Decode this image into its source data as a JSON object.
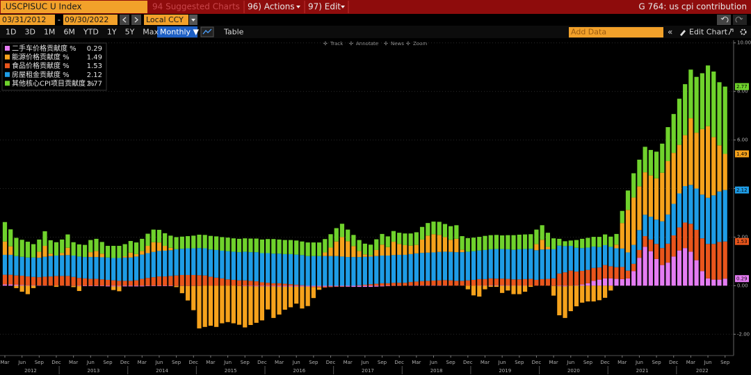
{
  "ui": {
    "ticker": ".USCPISUC U Index",
    "suggested": "94 Suggested Charts",
    "actions": "96) Actions",
    "edit": "97) Edit",
    "chart_id": "G 764: us cpi contribution",
    "start_date": "03/31/2012",
    "dash": "-",
    "end_date": "09/30/2022",
    "currency": "Local CCY",
    "periods": [
      "1D",
      "3D",
      "1M",
      "6M",
      "YTD",
      "1Y",
      "5Y",
      "Max"
    ],
    "frequency": "Monthly ▼",
    "table": "Table",
    "add_data": "Add Data",
    "edit_chart": "Edit Chart",
    "tools": [
      "Track",
      "Annotate",
      "News",
      "Zoom"
    ]
  },
  "chart_data": {
    "type": "bar",
    "stacked": true,
    "grid": true,
    "legend": "top-left",
    "categories": [
      "Mar",
      null,
      null,
      "Jun",
      null,
      null,
      "Sep",
      null,
      null,
      "Dec",
      null,
      null,
      "Mar",
      null,
      null,
      "Jun",
      null,
      null,
      "Sep",
      null,
      null,
      "Dec",
      null,
      null,
      "Mar",
      null,
      null,
      "Jun",
      null,
      null,
      "Sep",
      null,
      null,
      "Dec",
      null,
      null,
      "Mar",
      null,
      null,
      "Jun",
      null,
      null,
      "Sep",
      null,
      null,
      "Dec",
      null,
      null,
      "Mar",
      null,
      null,
      "Jun",
      null,
      null,
      "Sep",
      null,
      null,
      "Dec",
      null,
      null,
      "Mar",
      null,
      null,
      "Jun",
      null,
      null,
      "Sep",
      null,
      null,
      "Dec",
      null,
      null,
      "Mar",
      null,
      null,
      "Jun",
      null,
      null,
      "Sep",
      null,
      null,
      "Dec",
      null,
      null,
      "Mar",
      null,
      null,
      "Jun",
      null,
      null,
      "Sep",
      null,
      null,
      "Dec",
      null,
      null,
      "Mar",
      null,
      null,
      "Jun",
      null,
      null,
      "Sep",
      null,
      null,
      "Dec",
      null,
      null,
      "Mar",
      null,
      null,
      "Jun",
      null,
      null,
      "Sep",
      null,
      null,
      "Dec",
      null,
      null,
      "Mar",
      null,
      null,
      "Jun",
      null,
      null,
      "Sep"
    ],
    "years": [
      "2012",
      "2013",
      "2014",
      "2015",
      "2016",
      "2017",
      "2018",
      "2019",
      "2020",
      "2021",
      "2022"
    ],
    "ylim": [
      -2.85,
      10.05
    ],
    "yticks": [
      {
        "value": -2,
        "label": "-2.00"
      },
      {
        "value": 0,
        "label": "0.00"
      },
      {
        "value": 2,
        "label": "2.00"
      },
      {
        "value": 4,
        "label": "4.00"
      },
      {
        "value": 6,
        "label": "6.00"
      },
      {
        "value": 8,
        "label": "8.00"
      },
      {
        "value": 10,
        "label": "10.00"
      }
    ],
    "series": [
      {
        "name": "二手车价格贡献度 %",
        "color": "#e47cf2",
        "values": [
          0.05,
          0.05,
          0.04,
          0.03,
          0.02,
          0.02,
          0.01,
          0.01,
          0.0,
          0.0,
          0.0,
          -0.01,
          -0.01,
          -0.02,
          -0.02,
          -0.02,
          -0.02,
          -0.02,
          -0.03,
          -0.03,
          -0.03,
          -0.03,
          -0.03,
          -0.03,
          -0.03,
          -0.02,
          -0.02,
          -0.02,
          -0.02,
          -0.02,
          -0.01,
          -0.01,
          -0.01,
          -0.01,
          -0.01,
          0.0,
          0.0,
          0.0,
          0.0,
          0.0,
          0.0,
          -0.01,
          -0.02,
          -0.02,
          -0.03,
          -0.03,
          -0.03,
          -0.03,
          -0.04,
          -0.04,
          -0.04,
          -0.04,
          -0.04,
          -0.04,
          -0.04,
          -0.04,
          -0.04,
          -0.03,
          -0.03,
          -0.03,
          -0.04,
          -0.05,
          -0.05,
          -0.05,
          -0.05,
          -0.04,
          -0.03,
          -0.02,
          -0.01,
          -0.01,
          0.0,
          0.01,
          0.01,
          0.01,
          0.01,
          0.01,
          0.01,
          0.01,
          0.0,
          0.0,
          0.0,
          0.0,
          0.0,
          0.01,
          0.01,
          0.02,
          0.02,
          0.02,
          0.02,
          0.01,
          0.01,
          0.01,
          0.0,
          0.0,
          0.0,
          0.0,
          -0.01,
          -0.02,
          -0.03,
          0.0,
          0.02,
          0.05,
          0.1,
          0.2,
          0.25,
          0.3,
          0.3,
          0.28,
          0.27,
          0.3,
          0.6,
          1.15,
          1.6,
          1.42,
          1.1,
          0.85,
          0.95,
          1.2,
          1.45,
          1.55,
          1.4,
          1.05,
          0.6,
          0.3,
          0.25,
          0.25,
          0.29
        ]
      },
      {
        "name": "能源价格贡献度 %",
        "color": "#f5a21c",
        "values": [
          0.55,
          0.35,
          -0.1,
          -0.25,
          -0.35,
          -0.1,
          0.25,
          0.45,
          0.1,
          -0.05,
          0.1,
          0.3,
          -0.05,
          -0.2,
          0.0,
          0.2,
          0.25,
          0.15,
          0.0,
          -0.15,
          -0.2,
          0.05,
          0.2,
          0.1,
          0.15,
          0.3,
          0.4,
          0.35,
          0.2,
          0.1,
          -0.05,
          -0.3,
          -0.6,
          -1.0,
          -1.75,
          -1.7,
          -1.65,
          -1.7,
          -1.55,
          -1.5,
          -1.55,
          -1.6,
          -1.7,
          -1.6,
          -1.5,
          -1.4,
          -0.95,
          -1.3,
          -1.15,
          -0.95,
          -0.85,
          -0.7,
          -0.9,
          -0.8,
          -0.45,
          -0.1,
          0.15,
          0.35,
          0.6,
          0.8,
          0.65,
          0.45,
          0.25,
          0.1,
          0.05,
          0.25,
          0.45,
          0.35,
          0.55,
          0.45,
          0.4,
          0.35,
          0.35,
          0.55,
          0.7,
          0.75,
          0.7,
          0.6,
          0.5,
          0.55,
          0.1,
          -0.15,
          -0.4,
          -0.45,
          -0.15,
          -0.05,
          -0.05,
          -0.3,
          -0.2,
          -0.35,
          -0.35,
          -0.25,
          -0.05,
          0.25,
          0.4,
          0.1,
          -0.4,
          -1.2,
          -1.3,
          -1.05,
          -0.85,
          -0.7,
          -0.65,
          -0.65,
          -0.6,
          -0.5,
          -0.2,
          0.15,
          1.05,
          1.75,
          1.95,
          1.8,
          1.75,
          1.7,
          1.7,
          2.0,
          2.2,
          2.1,
          2.0,
          2.1,
          2.75,
          2.3,
          2.7,
          2.95,
          2.4,
          1.9,
          1.49
        ]
      },
      {
        "name": "食品价格贡献度 %",
        "color": "#e8551c",
        "values": [
          0.4,
          0.4,
          0.38,
          0.38,
          0.36,
          0.34,
          0.34,
          0.36,
          0.38,
          0.4,
          0.4,
          0.4,
          0.36,
          0.32,
          0.3,
          0.28,
          0.28,
          0.26,
          0.24,
          0.22,
          0.2,
          0.2,
          0.2,
          0.22,
          0.28,
          0.32,
          0.35,
          0.38,
          0.38,
          0.4,
          0.42,
          0.44,
          0.44,
          0.44,
          0.43,
          0.42,
          0.37,
          0.33,
          0.3,
          0.26,
          0.24,
          0.22,
          0.22,
          0.2,
          0.18,
          0.14,
          0.12,
          0.1,
          0.1,
          0.08,
          0.06,
          0.04,
          0.02,
          0.0,
          -0.02,
          -0.03,
          -0.04,
          -0.03,
          -0.02,
          -0.02,
          -0.01,
          0.0,
          0.02,
          0.04,
          0.06,
          0.08,
          0.1,
          0.1,
          0.12,
          0.12,
          0.12,
          0.14,
          0.16,
          0.18,
          0.19,
          0.2,
          0.21,
          0.22,
          0.22,
          0.2,
          0.2,
          0.22,
          0.24,
          0.26,
          0.26,
          0.28,
          0.27,
          0.27,
          0.26,
          0.25,
          0.25,
          0.26,
          0.28,
          0.24,
          0.27,
          0.28,
          0.3,
          0.5,
          0.55,
          0.62,
          0.56,
          0.56,
          0.55,
          0.53,
          0.5,
          0.55,
          0.5,
          0.48,
          0.5,
          0.32,
          0.3,
          0.32,
          0.44,
          0.48,
          0.62,
          0.7,
          0.78,
          0.87,
          0.95,
          1.05,
          1.15,
          1.25,
          1.35,
          1.42,
          1.47,
          1.55,
          1.53
        ]
      },
      {
        "name": "房屋租金贡献度 %",
        "color": "#1e9ce6",
        "values": [
          0.82,
          0.82,
          0.8,
          0.78,
          0.78,
          0.8,
          0.8,
          0.82,
          0.84,
          0.84,
          0.85,
          0.86,
          0.88,
          0.88,
          0.88,
          0.9,
          0.9,
          0.91,
          0.92,
          0.92,
          0.94,
          0.96,
          0.96,
          0.98,
          1.0,
          1.02,
          1.04,
          1.05,
          1.06,
          1.06,
          1.08,
          1.08,
          1.1,
          1.1,
          1.12,
          1.12,
          1.12,
          1.14,
          1.14,
          1.16,
          1.16,
          1.16,
          1.18,
          1.18,
          1.2,
          1.2,
          1.22,
          1.22,
          1.22,
          1.22,
          1.24,
          1.24,
          1.24,
          1.22,
          1.22,
          1.22,
          1.22,
          1.22,
          1.22,
          1.2,
          1.18,
          1.18,
          1.16,
          1.15,
          1.14,
          1.14,
          1.14,
          1.14,
          1.14,
          1.15,
          1.15,
          1.15,
          1.16,
          1.16,
          1.16,
          1.16,
          1.17,
          1.17,
          1.17,
          1.18,
          1.18,
          1.18,
          1.18,
          1.18,
          1.2,
          1.2,
          1.22,
          1.22,
          1.22,
          1.22,
          1.24,
          1.24,
          1.24,
          1.22,
          1.22,
          1.22,
          1.2,
          1.15,
          1.08,
          1.02,
          0.98,
          0.94,
          0.92,
          0.88,
          0.84,
          0.82,
          0.8,
          0.78,
          0.76,
          0.75,
          0.78,
          0.82,
          0.88,
          0.94,
          1.0,
          1.1,
          1.2,
          1.3,
          1.4,
          1.5,
          1.6,
          1.7,
          1.8,
          1.9,
          2.0,
          2.08,
          2.12
        ]
      },
      {
        "name": "其他核心CPI项目贡献度 %",
        "color": "#6fd22c",
        "values": [
          0.8,
          0.7,
          0.75,
          0.7,
          0.65,
          0.55,
          0.5,
          0.6,
          0.55,
          0.55,
          0.55,
          0.55,
          0.55,
          0.5,
          0.5,
          0.5,
          0.5,
          0.48,
          0.48,
          0.5,
          0.5,
          0.5,
          0.48,
          0.48,
          0.5,
          0.5,
          0.52,
          0.52,
          0.52,
          0.5,
          0.5,
          0.5,
          0.5,
          0.52,
          0.55,
          0.55,
          0.56,
          0.56,
          0.56,
          0.56,
          0.55,
          0.55,
          0.55,
          0.56,
          0.56,
          0.56,
          0.58,
          0.6,
          0.58,
          0.58,
          0.58,
          0.58,
          0.56,
          0.56,
          0.56,
          0.56,
          0.55,
          0.55,
          0.55,
          0.55,
          0.48,
          0.46,
          0.45,
          0.44,
          0.44,
          0.44,
          0.44,
          0.44,
          0.44,
          0.46,
          0.48,
          0.5,
          0.52,
          0.52,
          0.52,
          0.52,
          0.54,
          0.54,
          0.56,
          0.56,
          0.56,
          0.56,
          0.56,
          0.56,
          0.58,
          0.58,
          0.58,
          0.56,
          0.58,
          0.6,
          0.6,
          0.6,
          0.6,
          0.6,
          0.6,
          0.58,
          0.45,
          0.28,
          0.2,
          0.22,
          0.32,
          0.38,
          0.4,
          0.4,
          0.42,
          0.44,
          0.42,
          0.44,
          0.5,
          0.8,
          1.0,
          1.1,
          1.05,
          1.05,
          1.1,
          1.2,
          1.4,
          1.6,
          1.9,
          2.1,
          2.0,
          2.3,
          2.3,
          2.5,
          2.7,
          2.6,
          2.77
        ]
      }
    ]
  }
}
